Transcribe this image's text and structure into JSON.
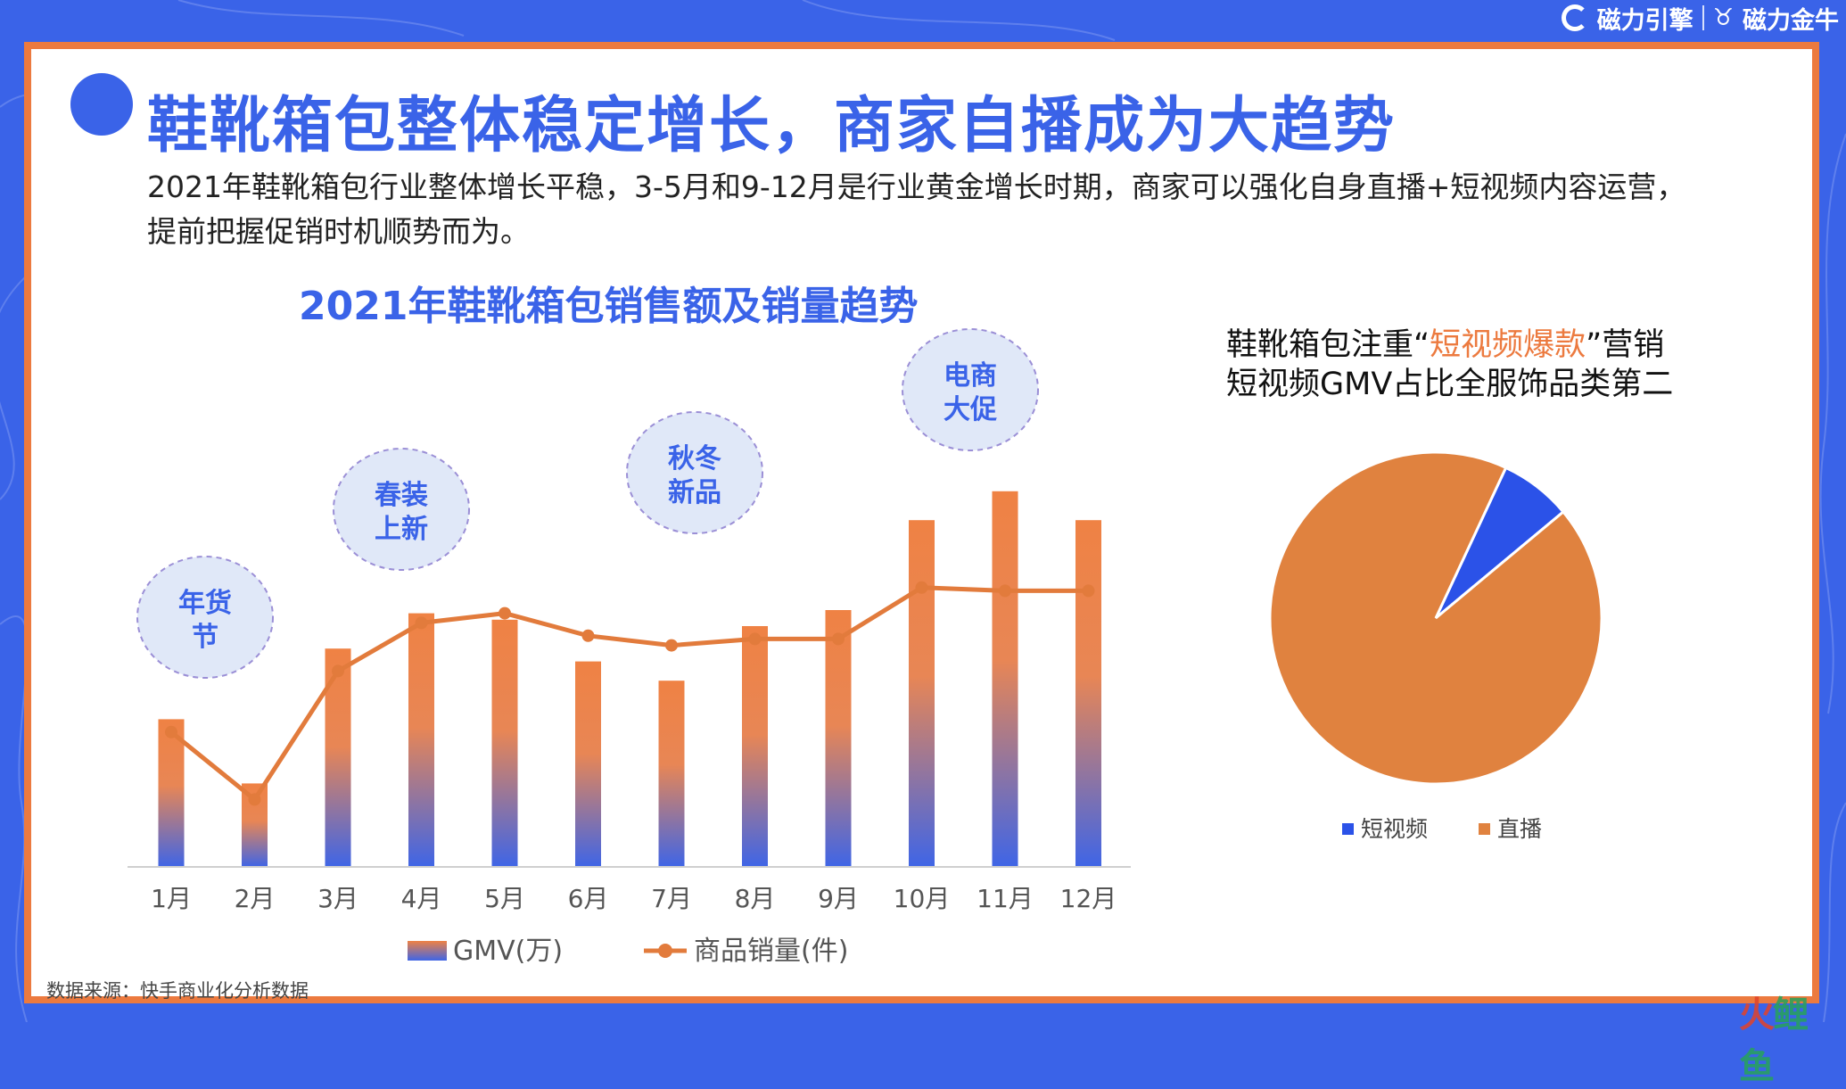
{
  "brand": {
    "logo1": "磁力引擎",
    "logo2": "磁力金牛"
  },
  "header": {
    "title": "鞋靴箱包整体稳定增长，商家自播成为大趋势",
    "intro_line1": "2021年鞋靴箱包行业整体增长平稳，3-5月和9-12月是行业黄金增长时期，商家可以强化自身直播+短视频内容运营，",
    "intro_line2": "提前把握促销时机顺势而为。"
  },
  "chart_data": [
    {
      "type": "bar+line",
      "title": "2021年鞋靴箱包销售额及销量趋势",
      "categories": [
        "1月",
        "2月",
        "3月",
        "4月",
        "5月",
        "6月",
        "7月",
        "8月",
        "9月",
        "10月",
        "11月",
        "12月"
      ],
      "series": [
        {
          "name": "GMV(万)",
          "type": "bar",
          "values": [
            46,
            26,
            68,
            79,
            77,
            64,
            58,
            75,
            80,
            108,
            117,
            108
          ]
        },
        {
          "name": "商品销量(件)",
          "type": "line",
          "values": [
            42,
            21,
            61,
            76,
            79,
            72,
            69,
            71,
            71,
            87,
            86,
            86
          ]
        }
      ],
      "ylim": [
        0,
        125
      ],
      "axes_visible": false,
      "grid": false,
      "legend": "bottom",
      "colors": {
        "bar_top": "#ef8244",
        "bar_bottom": "#3f65e6",
        "line": "#e27b3c"
      },
      "annotations": [
        {
          "label_line1": "年货",
          "label_line2": "节",
          "month": "1月"
        },
        {
          "label_line1": "春装",
          "label_line2": "上新",
          "month": "3月-4月"
        },
        {
          "label_line1": "秋冬",
          "label_line2": "新品",
          "month": "7月"
        },
        {
          "label_line1": "电商",
          "label_line2": "大促",
          "month": "10月"
        }
      ]
    },
    {
      "type": "pie",
      "title_part1": "鞋靴箱包注重“",
      "title_highlight": "短视频爆款",
      "title_part2": "”营销",
      "subtitle": "短视频GMV占比全服饰品类第二",
      "slices": [
        {
          "label": "短视频",
          "value": 7,
          "color": "#2b52e8"
        },
        {
          "label": "直播",
          "value": 93,
          "color": "#e0823f"
        }
      ],
      "legend": "bottom"
    }
  ],
  "footer": {
    "source": "数据来源：快手商业化分析数据",
    "watermark_a": "火",
    "watermark_b": "鲤",
    "watermark_c": "鱼"
  }
}
